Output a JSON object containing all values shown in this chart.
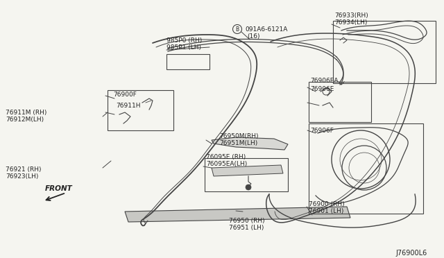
{
  "background_color": "#f5f5f0",
  "diagram_id": "J76900L6",
  "line_color": "#444444",
  "text_color": "#222222",
  "font_size": 6.5,
  "labels": {
    "985P0_RH": "985P0 (RH)",
    "985P1_LH": "985P1 (LH)",
    "bolt": "B091A6-6121A",
    "bolt2": "(16)",
    "p76933": "76933(RH)",
    "p76934": "76934(LH)",
    "p76906EA": "76906EA",
    "p76906E": "76906E",
    "p76906F": "76906F",
    "p76900F": "76900F",
    "p76911H": "76911H",
    "p76911M": "76911M (RH)",
    "p76912M": "76912M(LH)",
    "p76950M_RH": "76950M(RH)",
    "p76951M_LH": "76951M(LH)",
    "p76095E": "76095E (RH)",
    "p76095EA": "76095EA(LH)",
    "p76921": "76921 (RH)",
    "p76923": "76923(LH)",
    "p76900": "76900 (RH)",
    "p76901": "76901 (LH)",
    "p76950": "76950 (RH)",
    "p76951": "76951 (LH)",
    "front": "FRONT",
    "diagram_id": "J76900L6"
  }
}
